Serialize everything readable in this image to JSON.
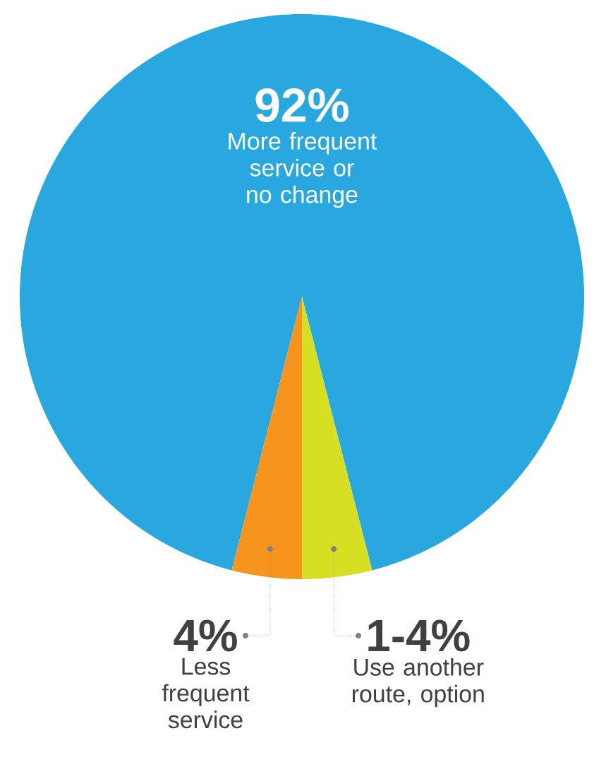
{
  "chart_data": {
    "type": "pie",
    "categories": [
      "More frequent service or no change",
      "Less frequent service",
      "Use another route, option"
    ],
    "values": [
      92,
      4,
      4
    ],
    "value_labels": [
      "92%",
      "4%",
      null
    ],
    "annotations": [
      "1-4%"
    ],
    "colors": [
      "#29a8e0",
      "#f7941d",
      "#d7df23"
    ],
    "legend": false
  }
}
